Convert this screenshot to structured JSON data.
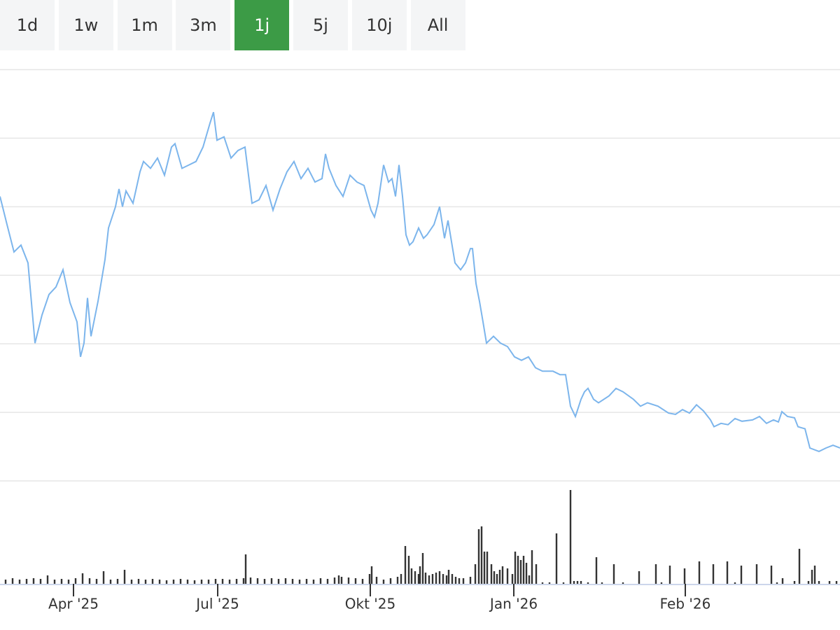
{
  "range_buttons": {
    "labels": [
      "1d",
      "1w",
      "1m",
      "3m",
      "1j",
      "5j",
      "10j",
      "All"
    ],
    "active": "1j",
    "active_color": "#3c9b46"
  },
  "chart_data": [
    {
      "type": "line",
      "color": "#7cb5ec",
      "xlim": [
        0,
        120
      ],
      "ylim": [
        0,
        6
      ],
      "yticks": [
        0,
        1,
        2,
        3,
        4,
        5,
        6
      ],
      "grid": true,
      "x": [
        0,
        1,
        2,
        3,
        4,
        5,
        6,
        7,
        8,
        9,
        10,
        11,
        11.5,
        12,
        12.5,
        13,
        14,
        15,
        15.5,
        16.5,
        17,
        17.5,
        18,
        19,
        20,
        20.5,
        21.5,
        22.5,
        23.5,
        24.5,
        25,
        26,
        27,
        28,
        29,
        30,
        30.5,
        31,
        32,
        33,
        34,
        35,
        36,
        37,
        38,
        39,
        40,
        41,
        42,
        43,
        44,
        45,
        46,
        46.5,
        47,
        48,
        49,
        50,
        51,
        52,
        53,
        53.5,
        54,
        54.8,
        55.5,
        56,
        56.5,
        57,
        57.5,
        58,
        58.5,
        59,
        59.8,
        60.5,
        61,
        62,
        62.8,
        63.5,
        64,
        64.5,
        65,
        65.8,
        66.5,
        67.2,
        67.5,
        68,
        68.5,
        69,
        69.5,
        70.5,
        71.5,
        72.5,
        73.5,
        74.5,
        75.5,
        76.5,
        77.5,
        79,
        80,
        80.8,
        81.5,
        82.2,
        83,
        83.5,
        84,
        84.8,
        85.5,
        87,
        88,
        89,
        90.5,
        91.5,
        92.5,
        94,
        95.5,
        96.5,
        97.5,
        98.5,
        99.5,
        100.5,
        101.5,
        102,
        103,
        104,
        105,
        106,
        107.5,
        108.5,
        109.5,
        110.5,
        111.2,
        111.7,
        112.5,
        113.5,
        114,
        115,
        115.7,
        117,
        118,
        119,
        120
      ],
      "values": [
        4.15,
        3.74,
        3.34,
        3.44,
        3.18,
        2.01,
        2.42,
        2.72,
        2.83,
        3.08,
        2.6,
        2.32,
        1.81,
        2.01,
        2.67,
        2.11,
        2.62,
        3.23,
        3.69,
        4.0,
        4.26,
        4.0,
        4.23,
        4.05,
        4.51,
        4.66,
        4.56,
        4.71,
        4.46,
        4.87,
        4.92,
        4.56,
        4.61,
        4.66,
        4.87,
        5.22,
        5.38,
        4.97,
        5.02,
        4.71,
        4.82,
        4.87,
        4.05,
        4.1,
        4.31,
        3.95,
        4.26,
        4.51,
        4.66,
        4.41,
        4.56,
        4.36,
        4.41,
        4.77,
        4.56,
        4.31,
        4.15,
        4.46,
        4.36,
        4.31,
        3.95,
        3.85,
        4.05,
        4.61,
        4.36,
        4.41,
        4.15,
        4.61,
        4.15,
        3.59,
        3.44,
        3.49,
        3.69,
        3.54,
        3.59,
        3.74,
        4.0,
        3.54,
        3.8,
        3.49,
        3.18,
        3.08,
        3.18,
        3.39,
        3.39,
        2.88,
        2.62,
        2.32,
        2.01,
        2.11,
        2.01,
        1.96,
        1.81,
        1.76,
        1.81,
        1.65,
        1.6,
        1.6,
        1.55,
        1.55,
        1.09,
        0.94,
        1.19,
        1.3,
        1.35,
        1.19,
        1.14,
        1.24,
        1.35,
        1.3,
        1.19,
        1.09,
        1.14,
        1.09,
        0.99,
        0.97,
        1.04,
        0.99,
        1.11,
        1.02,
        0.89,
        0.79,
        0.84,
        0.82,
        0.91,
        0.87,
        0.89,
        0.94,
        0.84,
        0.89,
        0.86,
        1.01,
        0.94,
        0.92,
        0.79,
        0.76,
        0.48,
        0.43,
        0.48,
        0.52,
        0.48
      ]
    },
    {
      "type": "bar",
      "color": "#333333",
      "xlim": [
        0,
        120
      ],
      "ylim": [
        0,
        147
      ],
      "xticks": [
        {
          "value": 10.5,
          "label": "Apr '25"
        },
        {
          "value": 31.1,
          "label": "Jul '25"
        },
        {
          "value": 52.9,
          "label": "Okt '25"
        },
        {
          "value": 73.4,
          "label": "Jan '26"
        },
        {
          "value": 97.9,
          "label": "Feb '26"
        }
      ],
      "x": [
        0.8,
        1.8,
        2.8,
        3.8,
        4.8,
        5.8,
        6.8,
        7.8,
        8.8,
        9.8,
        10.8,
        11.8,
        12.8,
        13.8,
        14.8,
        15.8,
        16.8,
        17.8,
        18.8,
        19.8,
        20.8,
        21.8,
        22.8,
        23.8,
        24.8,
        25.8,
        26.8,
        27.8,
        28.8,
        29.8,
        30.8,
        31.8,
        32.8,
        33.8,
        34.8,
        35.1,
        35.8,
        36.8,
        37.8,
        38.8,
        39.8,
        40.8,
        41.8,
        42.8,
        43.8,
        44.8,
        45.8,
        46.8,
        47.8,
        48.4,
        48.8,
        49.8,
        50.8,
        51.8,
        52.8,
        53.1,
        53.8,
        54.8,
        55.8,
        56.8,
        57.3,
        57.9,
        58.4,
        58.8,
        59.3,
        59.8,
        60.0,
        60.4,
        60.8,
        61.3,
        61.8,
        62.3,
        62.8,
        63.3,
        63.8,
        64.1,
        64.6,
        65.1,
        65.6,
        66.2,
        67.2,
        67.9,
        68.4,
        68.8,
        69.2,
        69.6,
        70.2,
        70.6,
        71.0,
        71.4,
        71.8,
        72.5,
        73.2,
        73.6,
        74.0,
        74.4,
        74.8,
        75.2,
        75.6,
        76.0,
        76.6,
        77.5,
        78.5,
        79.5,
        80.5,
        81.5,
        82.0,
        82.5,
        83.0,
        84.0,
        85.2,
        86.0,
        87.7,
        89.0,
        91.3,
        93.7,
        94.5,
        95.7,
        97.8,
        99.9,
        101.9,
        103.9,
        105.0,
        105.9,
        108.1,
        110.2,
        111.0,
        111.8,
        113.5,
        114.2,
        115.5,
        116.0,
        116.4,
        117.0,
        118.5,
        119.5
      ],
      "values": [
        6,
        8,
        6,
        7,
        8,
        7,
        12,
        6,
        7,
        6,
        8,
        15,
        8,
        7,
        18,
        6,
        7,
        20,
        6,
        7,
        6,
        7,
        6,
        5,
        6,
        7,
        6,
        5,
        6,
        6,
        7,
        7,
        6,
        7,
        8,
        42,
        9,
        8,
        7,
        8,
        7,
        8,
        7,
        6,
        7,
        6,
        8,
        7,
        9,
        12,
        10,
        9,
        8,
        7,
        14,
        25,
        10,
        6,
        8,
        10,
        14,
        54,
        40,
        22,
        18,
        14,
        25,
        44,
        16,
        12,
        14,
        16,
        18,
        14,
        12,
        20,
        14,
        10,
        8,
        8,
        10,
        28,
        78,
        82,
        46,
        46,
        28,
        18,
        14,
        20,
        25,
        22,
        14,
        46,
        40,
        34,
        40,
        30,
        12,
        48,
        28,
        2,
        2,
        72,
        2,
        134,
        4,
        4,
        4,
        2,
        38,
        2,
        28,
        2,
        18,
        28,
        2,
        26,
        22,
        32,
        28,
        32,
        2,
        26,
        28,
        26,
        2,
        8,
        4,
        50,
        4,
        20,
        26,
        4,
        4,
        4
      ]
    }
  ]
}
